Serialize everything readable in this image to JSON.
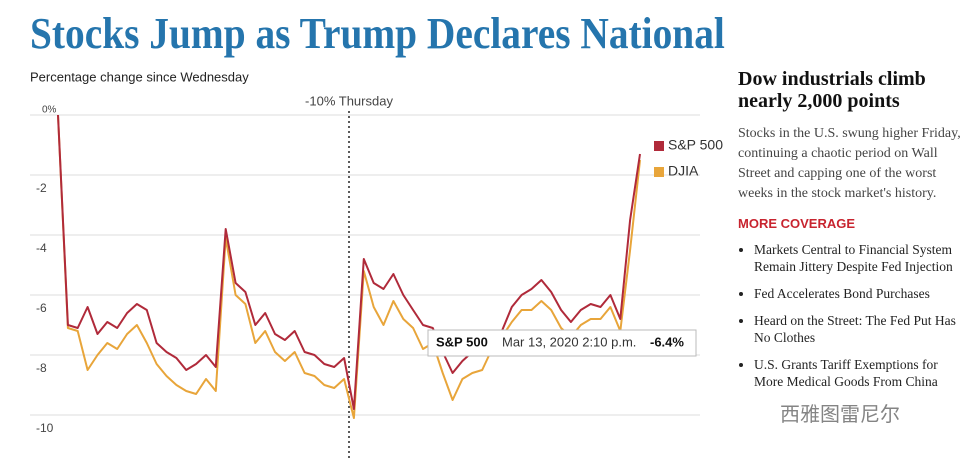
{
  "chart_data": {
    "type": "line",
    "title": "Stocks Jump as Trump Declares National Emergency",
    "subtitle": "Percentage change since Wednesday",
    "x": [
      0,
      1,
      2,
      3,
      4,
      5,
      6,
      7,
      8,
      9,
      10,
      11,
      12,
      13,
      14,
      15,
      16,
      17,
      18,
      19,
      20,
      21,
      22,
      23,
      24,
      25,
      26,
      27,
      28,
      29,
      30,
      31,
      32,
      33,
      34,
      35,
      36,
      37,
      38,
      39,
      40,
      41,
      42,
      43,
      44,
      45,
      46,
      47,
      48,
      49,
      50,
      51,
      52,
      53,
      54,
      55,
      56,
      57,
      58,
      59
    ],
    "xlim": [
      0,
      59
    ],
    "ylim": [
      -11,
      0
    ],
    "yticks": [
      {
        "value": 0,
        "label": "0%"
      },
      -2,
      -4,
      -6,
      -8,
      -10
    ],
    "grid": true,
    "legend": "top-right",
    "series": [
      {
        "name": "S&P 500",
        "color": "#b02a3a",
        "values": [
          0,
          -7.0,
          -7.1,
          -6.4,
          -7.3,
          -6.9,
          -7.1,
          -6.6,
          -6.3,
          -6.5,
          -7.6,
          -7.9,
          -8.1,
          -8.5,
          -8.3,
          -8.0,
          -8.4,
          -3.8,
          -5.6,
          -5.9,
          -7.0,
          -6.6,
          -7.3,
          -7.5,
          -7.2,
          -7.9,
          -8.0,
          -8.3,
          -8.4,
          -8.1,
          -9.8,
          -4.8,
          -5.6,
          -5.8,
          -5.3,
          -6.0,
          -6.5,
          -7.0,
          -7.1,
          -7.9,
          -8.6,
          -8.2,
          -7.9,
          -7.6,
          -7.2,
          -7.2,
          -6.4,
          -6.0,
          -5.8,
          -5.5,
          -5.9,
          -6.5,
          -6.9,
          -6.5,
          -6.3,
          -6.4,
          -6.0,
          -6.8,
          -3.5,
          -1.3
        ]
      },
      {
        "name": "DJIA",
        "color": "#e8a53a",
        "values": [
          0,
          -7.1,
          -7.2,
          -8.5,
          -8.0,
          -7.6,
          -7.8,
          -7.3,
          -7.0,
          -7.6,
          -8.3,
          -8.7,
          -9.0,
          -9.2,
          -9.3,
          -8.8,
          -9.2,
          -4.1,
          -6.0,
          -6.3,
          -7.6,
          -7.2,
          -7.9,
          -8.2,
          -7.9,
          -8.6,
          -8.7,
          -9.0,
          -9.1,
          -8.8,
          -10.1,
          -5.2,
          -6.4,
          -7.0,
          -6.2,
          -6.8,
          -7.1,
          -7.8,
          -7.6,
          -8.6,
          -9.5,
          -8.8,
          -8.6,
          -8.5,
          -7.8,
          -7.4,
          -6.9,
          -6.5,
          -6.5,
          -6.2,
          -6.5,
          -7.1,
          -7.4,
          -7.0,
          -6.8,
          -6.8,
          -6.4,
          -7.2,
          -4.5,
          -1.5
        ]
      }
    ],
    "annotation": {
      "text": "-10% Thursday",
      "x": 29.5
    },
    "tooltip": {
      "series": "S&P 500",
      "date": "Mar 13, 2020 2:10 p.m.",
      "value": -6.4,
      "value_label": "-6.4%"
    }
  },
  "sidebar": {
    "headline": "Dow industrials climb nearly 2,000 points",
    "summary": "Stocks in the U.S. swung higher Friday, continuing a chaotic period on Wall Street and capping one of the worst weeks in the stock market's history.",
    "coverage_title": "MORE COVERAGE",
    "links": [
      "Markets Central to Financial System Remain Jittery Despite Fed Injection",
      "Fed Accelerates Bond Purchases",
      "Heard on the Street: The Fed Put Has No Clothes",
      "U.S. Grants Tariff Exemptions for More Medical Goods From China"
    ]
  },
  "watermark": "西雅图雷尼尔"
}
